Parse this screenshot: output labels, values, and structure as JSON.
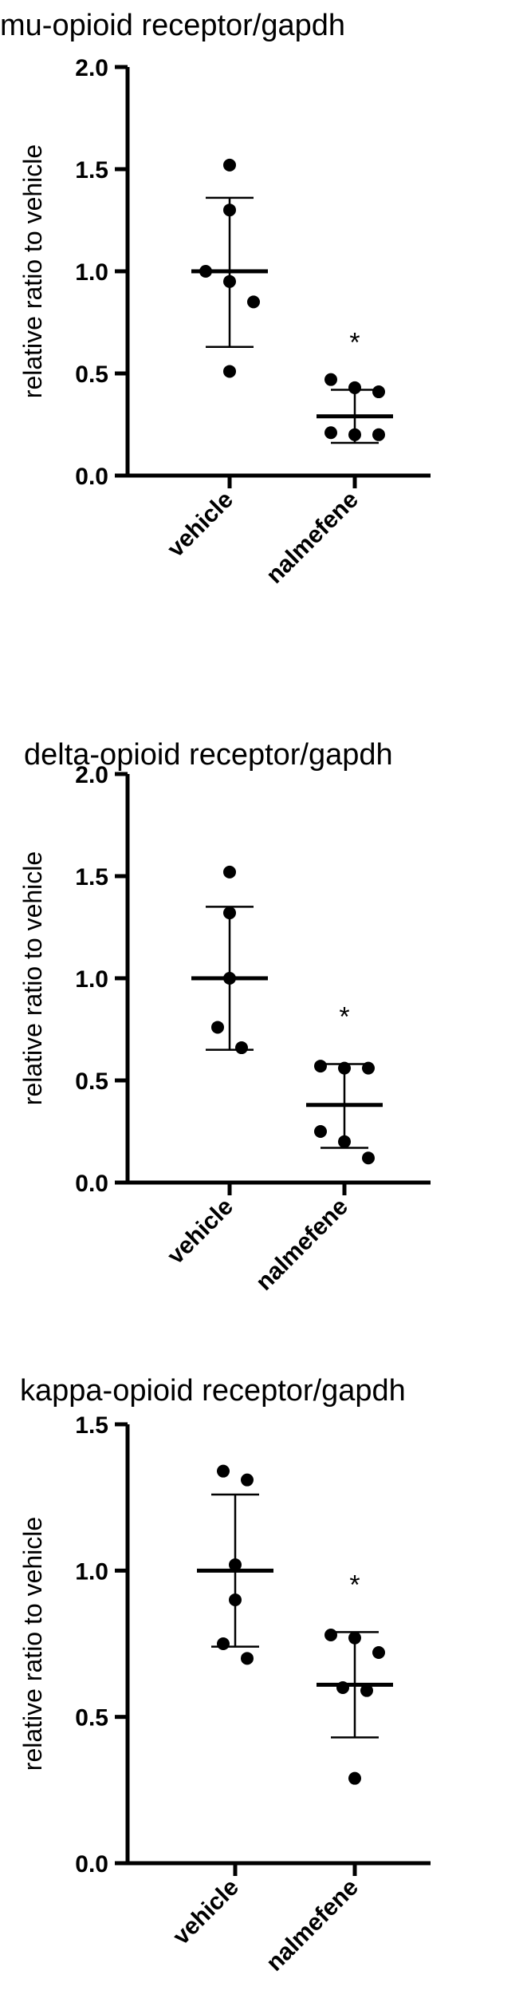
{
  "chart_data": [
    {
      "type": "scatter",
      "title": "mu-opioid receptor/gapdh",
      "ylabel": "relative ratio to vehicle",
      "ylim": [
        0,
        2.0
      ],
      "yticks": [
        "0.0",
        "0.5",
        "1.0",
        "1.5",
        "2.0"
      ],
      "categories": [
        "vehicle",
        "nalmefene"
      ],
      "series": [
        {
          "points": [
            1.52,
            1.3,
            1.0,
            0.95,
            0.85,
            0.51
          ],
          "mean": 1.0,
          "sd_low": 0.63,
          "sd_high": 1.36
        },
        {
          "points": [
            0.47,
            0.43,
            0.41,
            0.21,
            0.2,
            0.2
          ],
          "mean": 0.29,
          "sd_low": 0.16,
          "sd_high": 0.42,
          "annotation": "*"
        }
      ]
    },
    {
      "type": "scatter",
      "title": "delta-opioid receptor/gapdh",
      "ylabel": "relative ratio to vehicle",
      "ylim": [
        0,
        2.0
      ],
      "yticks": [
        "0.0",
        "0.5",
        "1.0",
        "1.5",
        "2.0"
      ],
      "categories": [
        "vehicle",
        "nalmefene"
      ],
      "series": [
        {
          "points": [
            1.52,
            1.32,
            1.0,
            0.76,
            0.66
          ],
          "mean": 1.0,
          "sd_low": 0.65,
          "sd_high": 1.35
        },
        {
          "points": [
            0.57,
            0.56,
            0.56,
            0.25,
            0.2,
            0.12
          ],
          "mean": 0.38,
          "sd_low": 0.17,
          "sd_high": 0.58,
          "annotation": "*"
        }
      ]
    },
    {
      "type": "scatter",
      "title": "kappa-opioid receptor/gapdh",
      "ylabel": "relative ratio to vehicle",
      "ylim": [
        0,
        1.5
      ],
      "yticks": [
        "0.0",
        "0.5",
        "1.0",
        "1.5"
      ],
      "categories": [
        "vehicle",
        "nalmefene"
      ],
      "series": [
        {
          "points": [
            1.34,
            1.31,
            1.02,
            0.9,
            0.75,
            0.7
          ],
          "mean": 1.0,
          "sd_low": 0.74,
          "sd_high": 1.26
        },
        {
          "points": [
            0.78,
            0.77,
            0.72,
            0.6,
            0.59,
            0.29
          ],
          "mean": 0.61,
          "sd_low": 0.43,
          "sd_high": 0.79,
          "annotation": "*"
        }
      ]
    }
  ]
}
